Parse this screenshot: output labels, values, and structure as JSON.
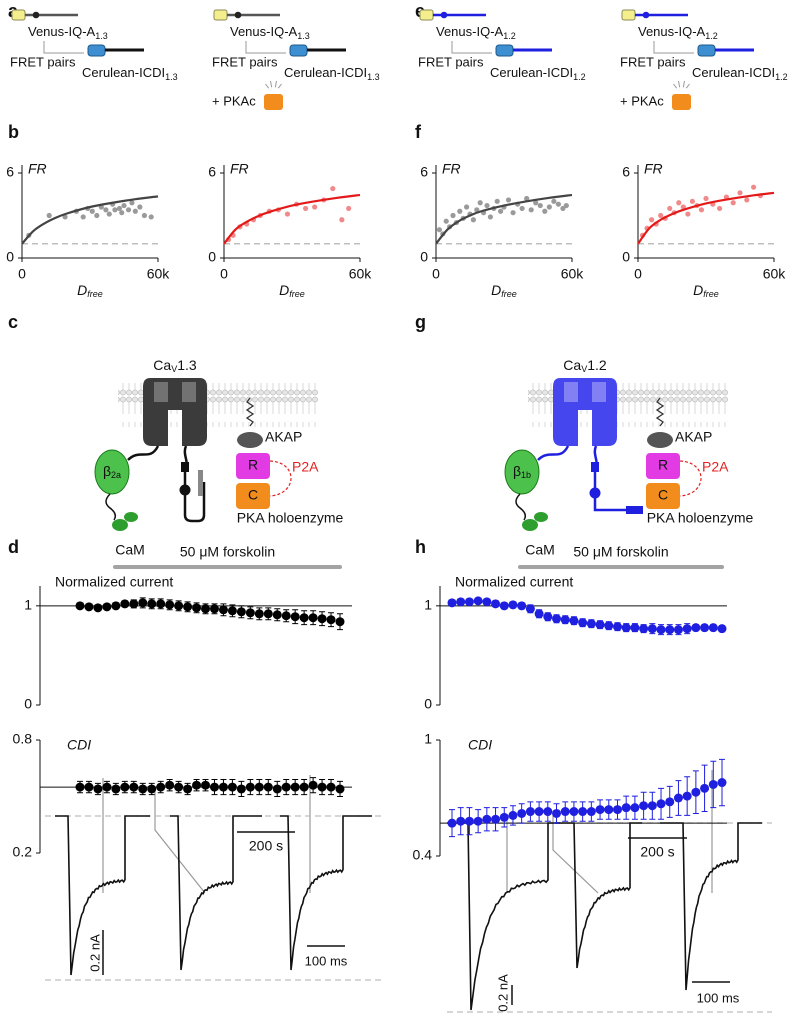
{
  "panel_labels": [
    "a",
    "b",
    "c",
    "d",
    "e",
    "f",
    "g",
    "h"
  ],
  "fret_schematics": [
    {
      "donor": {
        "text": "Venus-IQ-A",
        "sub": "1.3"
      },
      "pairs": "FRET pairs",
      "acceptor": {
        "text": "Cerulean-ICDI",
        "sub": "1.3"
      }
    },
    {
      "donor": {
        "text": "Venus-IQ-A",
        "sub": "1.3"
      },
      "pairs": "FRET pairs",
      "acceptor": {
        "text": "Cerulean-ICDI",
        "sub": "1.3"
      },
      "kinase": "+ PKAc"
    },
    {
      "donor": {
        "text": "Venus-IQ-A",
        "sub": "1.2"
      },
      "pairs": "FRET pairs",
      "acceptor": {
        "text": "Cerulean-ICDI",
        "sub": "1.2"
      }
    },
    {
      "donor": {
        "text": "Venus-IQ-A",
        "sub": "1.2"
      },
      "pairs": "FRET pairs",
      "acceptor": {
        "text": "Cerulean-ICDI",
        "sub": "1.2"
      },
      "kinase": "+ PKAc"
    }
  ],
  "channel_schematics": [
    {
      "channel": {
        "text": "Ca",
        "sub": "V",
        "rest": "1.3"
      },
      "beta": {
        "text": "β",
        "sub": "2a"
      },
      "akap": "AKAP",
      "regulatory": "R",
      "catalytic": "C",
      "linker": "P2A",
      "cam": "CaM",
      "holoenzyme": "PKA holoenzyme"
    },
    {
      "channel": {
        "text": "Ca",
        "sub": "V",
        "rest": "1.2"
      },
      "beta": {
        "text": "β",
        "sub": "1b"
      },
      "akap": "AKAP",
      "regulatory": "R",
      "catalytic": "C",
      "linker": "P2A",
      "cam": "CaM",
      "holoenzyme": "PKA holoenzyme"
    }
  ],
  "chart_data": [
    {
      "type": "scatter",
      "ylabel": "FR",
      "xlabel": {
        "text": "D",
        "sub": "free"
      },
      "xlim": [
        0,
        60000
      ],
      "xticks": [
        0,
        {
          "value": 60000,
          "label": "60k"
        }
      ],
      "ylim": [
        0,
        6
      ],
      "yticks": [
        0,
        6
      ],
      "reference": 1,
      "points": {
        "color": "#9a9a9a",
        "x": [
          3000,
          12000,
          19000,
          24000,
          27000,
          29000,
          31000,
          33000,
          35000,
          37000,
          38500,
          40000,
          41000,
          43000,
          44000,
          45000,
          47000,
          48500,
          50000,
          52000,
          54000,
          57000
        ],
        "y": [
          1.6,
          3.0,
          2.9,
          3.3,
          2.9,
          3.5,
          3.3,
          3.0,
          3.6,
          3.4,
          3.1,
          3.8,
          3.4,
          3.5,
          3.2,
          3.7,
          3.4,
          3.9,
          3.3,
          3.6,
          3.0,
          2.9
        ]
      },
      "fit": {
        "color": "#444444",
        "x": [
          0,
          5000,
          10000,
          15000,
          20000,
          30000,
          40000,
          50000,
          60000
        ],
        "y": [
          1,
          1.9,
          2.45,
          2.85,
          3.15,
          3.6,
          3.9,
          4.15,
          4.35
        ]
      }
    },
    {
      "type": "scatter",
      "ylabel": "FR",
      "xlabel": {
        "text": "D",
        "sub": "free"
      },
      "xlim": [
        0,
        60000
      ],
      "xticks": [
        0,
        {
          "value": 60000,
          "label": "60k"
        }
      ],
      "ylim": [
        0,
        6
      ],
      "yticks": [
        0,
        6
      ],
      "reference": 1,
      "points": {
        "color": "#f08a8a",
        "x": [
          2000,
          4000,
          7000,
          10000,
          13000,
          16000,
          20000,
          24000,
          28000,
          32000,
          36000,
          40000,
          44000,
          48000,
          52000,
          55000
        ],
        "y": [
          1.3,
          1.6,
          2.2,
          2.4,
          2.7,
          3.0,
          3.3,
          3.4,
          3.1,
          3.8,
          3.5,
          3.6,
          4.1,
          4.9,
          2.7,
          3.5
        ]
      },
      "fit": {
        "color": "#e41a1a",
        "x": [
          0,
          5000,
          10000,
          15000,
          20000,
          30000,
          40000,
          50000,
          60000
        ],
        "y": [
          1,
          2.0,
          2.55,
          2.95,
          3.25,
          3.7,
          4.0,
          4.25,
          4.45
        ]
      }
    },
    {
      "type": "scatter",
      "ylabel": "FR",
      "xlabel": {
        "text": "D",
        "sub": "free"
      },
      "xlim": [
        0,
        60000
      ],
      "xticks": [
        0,
        {
          "value": 60000,
          "label": "60k"
        }
      ],
      "ylim": [
        0,
        6
      ],
      "yticks": [
        0,
        6
      ],
      "reference": 1,
      "points": {
        "color": "#9a9a9a",
        "x": [
          1500,
          3000,
          4500,
          6000,
          7500,
          9000,
          10500,
          12000,
          13500,
          15000,
          16500,
          18000,
          19500,
          21000,
          22500,
          24000,
          25500,
          27000,
          28500,
          30000,
          32000,
          34000,
          36000,
          38000,
          40000,
          42000,
          44000,
          46000,
          48000,
          50000,
          52000,
          54000,
          56000,
          57500
        ],
        "y": [
          2.0,
          1.7,
          2.6,
          2.2,
          3.0,
          2.5,
          3.3,
          2.8,
          3.6,
          3.1,
          2.7,
          3.4,
          3.9,
          3.2,
          3.7,
          2.9,
          3.5,
          4.0,
          3.3,
          3.6,
          4.1,
          3.2,
          3.8,
          3.5,
          4.2,
          3.4,
          3.9,
          3.7,
          3.3,
          3.6,
          4.0,
          3.8,
          3.5,
          3.7
        ]
      },
      "fit": {
        "color": "#444444",
        "x": [
          0,
          5000,
          10000,
          15000,
          20000,
          30000,
          40000,
          50000,
          60000
        ],
        "y": [
          1,
          2.0,
          2.6,
          3.0,
          3.3,
          3.7,
          4.0,
          4.25,
          4.45
        ]
      }
    },
    {
      "type": "scatter",
      "ylabel": "FR",
      "xlabel": {
        "text": "D",
        "sub": "free"
      },
      "xlim": [
        0,
        60000
      ],
      "xticks": [
        0,
        {
          "value": 60000,
          "label": "60k"
        }
      ],
      "ylim": [
        0,
        6
      ],
      "yticks": [
        0,
        6
      ],
      "reference": 1,
      "points": {
        "color": "#f08a8a",
        "x": [
          2000,
          4000,
          6000,
          8000,
          10000,
          12000,
          14000,
          16000,
          18000,
          20000,
          22000,
          24000,
          26000,
          28000,
          30000,
          33000,
          36000,
          39000,
          42000,
          45000,
          48000,
          51000,
          54000
        ],
        "y": [
          1.6,
          2.1,
          2.7,
          2.4,
          3.0,
          2.8,
          3.5,
          3.2,
          3.9,
          3.6,
          3.1,
          4.0,
          3.7,
          3.4,
          4.2,
          3.8,
          3.5,
          4.3,
          3.9,
          4.6,
          4.1,
          5.0,
          4.4
        ]
      },
      "fit": {
        "color": "#e41a1a",
        "x": [
          0,
          5000,
          10000,
          15000,
          20000,
          30000,
          40000,
          50000,
          60000
        ],
        "y": [
          1,
          2.1,
          2.7,
          3.1,
          3.4,
          3.85,
          4.15,
          4.4,
          4.6
        ]
      }
    },
    {
      "type": "errorbar",
      "annotation": "50 μM forskolin",
      "ylabel": "Normalized current",
      "ylim": [
        0,
        1.2
      ],
      "yticks": [
        0,
        1
      ],
      "reference": 1,
      "color": "#000000",
      "values": [
        1.0,
        0.99,
        0.98,
        0.99,
        1.0,
        1.02,
        1.02,
        1.03,
        1.02,
        1.02,
        1.01,
        1.0,
        0.99,
        0.98,
        0.97,
        0.97,
        0.96,
        0.95,
        0.94,
        0.93,
        0.92,
        0.92,
        0.91,
        0.9,
        0.89,
        0.88,
        0.88,
        0.87,
        0.86,
        0.84
      ],
      "errors": [
        0.01,
        0.02,
        0.02,
        0.02,
        0.03,
        0.03,
        0.04,
        0.05,
        0.05,
        0.05,
        0.05,
        0.05,
        0.05,
        0.05,
        0.05,
        0.05,
        0.06,
        0.06,
        0.06,
        0.06,
        0.06,
        0.06,
        0.06,
        0.06,
        0.07,
        0.07,
        0.07,
        0.07,
        0.07,
        0.08
      ]
    },
    {
      "type": "errorbar",
      "ylabel": "CDI",
      "scale_label": "200 s",
      "ylim": [
        0.2,
        0.8
      ],
      "yticks": [
        0.2,
        0.8
      ],
      "reference": 0.55,
      "color": "#000000",
      "values": [
        0.55,
        0.55,
        0.54,
        0.55,
        0.54,
        0.55,
        0.55,
        0.54,
        0.54,
        0.55,
        0.56,
        0.55,
        0.54,
        0.56,
        0.56,
        0.55,
        0.55,
        0.55,
        0.54,
        0.55,
        0.55,
        0.55,
        0.54,
        0.55,
        0.55,
        0.55,
        0.56,
        0.55,
        0.55,
        0.54
      ],
      "errors": [
        0.03,
        0.03,
        0.03,
        0.03,
        0.03,
        0.03,
        0.03,
        0.03,
        0.03,
        0.03,
        0.03,
        0.03,
        0.03,
        0.03,
        0.03,
        0.04,
        0.04,
        0.04,
        0.04,
        0.04,
        0.04,
        0.04,
        0.04,
        0.04,
        0.04,
        0.04,
        0.04,
        0.04,
        0.04,
        0.04
      ]
    },
    {
      "type": "errorbar",
      "annotation": "50 μM forskolin",
      "ylabel": "Normalized current",
      "ylim": [
        0,
        1.2
      ],
      "yticks": [
        0,
        1
      ],
      "reference": 1,
      "color": "#1f1fe0",
      "values": [
        1.03,
        1.04,
        1.04,
        1.05,
        1.04,
        1.02,
        1.0,
        1.01,
        1.0,
        0.97,
        0.92,
        0.89,
        0.87,
        0.86,
        0.85,
        0.83,
        0.82,
        0.81,
        0.8,
        0.79,
        0.78,
        0.78,
        0.77,
        0.77,
        0.76,
        0.76,
        0.76,
        0.77,
        0.78,
        0.78,
        0.78,
        0.77
      ],
      "errors": [
        0.02,
        0.02,
        0.02,
        0.02,
        0.02,
        0.03,
        0.03,
        0.03,
        0.03,
        0.04,
        0.04,
        0.04,
        0.04,
        0.04,
        0.04,
        0.04,
        0.04,
        0.04,
        0.04,
        0.04,
        0.04,
        0.04,
        0.04,
        0.05,
        0.05,
        0.05,
        0.05,
        0.05,
        0.03,
        0.03,
        0.03,
        0.03
      ]
    },
    {
      "type": "errorbar",
      "ylabel": "CDI",
      "scale_label": "200 s",
      "ylim": [
        0.4,
        1
      ],
      "yticks": [
        0.4,
        1
      ],
      "reference": 0.57,
      "color": "#1f1fe0",
      "values": [
        0.57,
        0.58,
        0.58,
        0.58,
        0.59,
        0.59,
        0.6,
        0.61,
        0.62,
        0.63,
        0.63,
        0.63,
        0.62,
        0.63,
        0.63,
        0.63,
        0.63,
        0.64,
        0.64,
        0.64,
        0.65,
        0.65,
        0.66,
        0.66,
        0.67,
        0.68,
        0.7,
        0.71,
        0.73,
        0.75,
        0.77,
        0.78
      ],
      "errors": [
        0.07,
        0.07,
        0.07,
        0.06,
        0.06,
        0.06,
        0.05,
        0.05,
        0.05,
        0.05,
        0.05,
        0.05,
        0.05,
        0.05,
        0.05,
        0.05,
        0.05,
        0.05,
        0.05,
        0.05,
        0.06,
        0.06,
        0.07,
        0.07,
        0.08,
        0.08,
        0.09,
        0.1,
        0.11,
        0.12,
        0.12,
        0.12
      ]
    }
  ],
  "traces": [
    {
      "current_scale": "0.2 nA",
      "time_scale": "100 ms"
    },
    {
      "current_scale": "0.2 nA",
      "time_scale": "100 ms"
    }
  ]
}
